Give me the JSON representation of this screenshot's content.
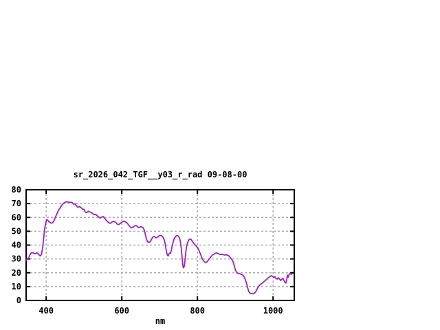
{
  "window": {
    "background": "#ffffff"
  },
  "chart_data": {
    "type": "line",
    "title": "sr_2026_042_TGF__y03_r_rad 09-08-00",
    "xlabel": "nm",
    "ylabel": "",
    "xlim": [
      347,
      1056
    ],
    "ylim": [
      0,
      80
    ],
    "xticks": [
      400,
      600,
      800,
      1000
    ],
    "yticks": [
      0,
      10,
      20,
      30,
      40,
      50,
      60,
      70,
      80
    ],
    "grid": true,
    "legend_position": "none",
    "axis_color": "#000000",
    "grid_color": "#aaaaaa",
    "line_color": "#a020c0",
    "series": [
      {
        "name": "sr_2026_042_TGF__y03_r_rad",
        "points": [
          [
            347,
            29.3
          ],
          [
            350,
            29.5
          ],
          [
            352,
            29.8
          ],
          [
            354,
            31.0
          ],
          [
            357,
            33.0
          ],
          [
            360,
            34.2
          ],
          [
            363,
            34.6
          ],
          [
            366,
            34.4
          ],
          [
            369,
            33.8
          ],
          [
            372,
            33.9
          ],
          [
            375,
            34.4
          ],
          [
            378,
            34.0
          ],
          [
            381,
            33.0
          ],
          [
            384,
            32.2
          ],
          [
            386,
            32.6
          ],
          [
            388,
            34.0
          ],
          [
            390,
            37.0
          ],
          [
            392,
            41.5
          ],
          [
            394,
            47.0
          ],
          [
            396,
            52.0
          ],
          [
            398,
            55.0
          ],
          [
            400,
            57.3
          ],
          [
            402,
            58.3
          ],
          [
            404,
            58.0
          ],
          [
            407,
            57.0
          ],
          [
            410,
            56.4
          ],
          [
            413,
            55.9
          ],
          [
            416,
            56.0
          ],
          [
            419,
            56.8
          ],
          [
            422,
            58.5
          ],
          [
            425,
            60.5
          ],
          [
            428,
            62.4
          ],
          [
            431,
            64.2
          ],
          [
            434,
            65.8
          ],
          [
            437,
            67.0
          ],
          [
            440,
            68.2
          ],
          [
            443,
            69.3
          ],
          [
            446,
            70.2
          ],
          [
            449,
            70.8
          ],
          [
            452,
            71.2
          ],
          [
            455,
            71.3
          ],
          [
            458,
            71.1
          ],
          [
            461,
            70.9
          ],
          [
            464,
            70.8
          ],
          [
            467,
            71.0
          ],
          [
            470,
            70.4
          ],
          [
            473,
            69.5
          ],
          [
            476,
            69.8
          ],
          [
            479,
            68.9
          ],
          [
            482,
            67.7
          ],
          [
            485,
            67.4
          ],
          [
            488,
            67.9
          ],
          [
            491,
            67.3
          ],
          [
            494,
            66.6
          ],
          [
            497,
            65.8
          ],
          [
            500,
            65.9
          ],
          [
            503,
            64.0
          ],
          [
            506,
            63.5
          ],
          [
            509,
            63.9
          ],
          [
            512,
            64.4
          ],
          [
            515,
            64.0
          ],
          [
            518,
            63.7
          ],
          [
            521,
            63.2
          ],
          [
            524,
            62.5
          ],
          [
            527,
            62.0
          ],
          [
            530,
            62.2
          ],
          [
            533,
            61.7
          ],
          [
            536,
            61.0
          ],
          [
            539,
            60.3
          ],
          [
            542,
            59.6
          ],
          [
            545,
            59.9
          ],
          [
            548,
            60.4
          ],
          [
            551,
            60.6
          ],
          [
            554,
            59.6
          ],
          [
            557,
            58.6
          ],
          [
            560,
            57.6
          ],
          [
            563,
            56.8
          ],
          [
            566,
            56.1
          ],
          [
            569,
            55.7
          ],
          [
            572,
            56.2
          ],
          [
            575,
            56.8
          ],
          [
            578,
            57.2
          ],
          [
            581,
            56.9
          ],
          [
            584,
            56.4
          ],
          [
            587,
            55.4
          ],
          [
            590,
            54.8
          ],
          [
            593,
            55.1
          ],
          [
            596,
            55.7
          ],
          [
            599,
            56.3
          ],
          [
            602,
            56.9
          ],
          [
            605,
            57.2
          ],
          [
            608,
            57.0
          ],
          [
            611,
            56.6
          ],
          [
            614,
            55.9
          ],
          [
            617,
            54.9
          ],
          [
            620,
            53.8
          ],
          [
            623,
            53.0
          ],
          [
            626,
            52.5
          ],
          [
            629,
            52.8
          ],
          [
            632,
            53.5
          ],
          [
            635,
            54.0
          ],
          [
            638,
            54.1
          ],
          [
            641,
            53.4
          ],
          [
            644,
            52.7
          ],
          [
            647,
            52.9
          ],
          [
            650,
            53.2
          ],
          [
            653,
            53.1
          ],
          [
            656,
            52.6
          ],
          [
            659,
            51.2
          ],
          [
            662,
            48.0
          ],
          [
            665,
            44.5
          ],
          [
            668,
            42.6
          ],
          [
            671,
            41.9
          ],
          [
            674,
            42.2
          ],
          [
            677,
            43.4
          ],
          [
            680,
            44.9
          ],
          [
            683,
            46.0
          ],
          [
            686,
            46.3
          ],
          [
            689,
            45.4
          ],
          [
            692,
            45.3
          ],
          [
            695,
            45.9
          ],
          [
            698,
            46.5
          ],
          [
            701,
            47.0
          ],
          [
            704,
            46.9
          ],
          [
            707,
            46.3
          ],
          [
            710,
            45.3
          ],
          [
            713,
            43.2
          ],
          [
            715,
            40.5
          ],
          [
            717,
            37.0
          ],
          [
            719,
            34.3
          ],
          [
            721,
            32.5
          ],
          [
            723,
            32.2
          ],
          [
            725,
            33.8
          ],
          [
            727,
            34.2
          ],
          [
            729,
            34.0
          ],
          [
            731,
            36.3
          ],
          [
            733,
            39.0
          ],
          [
            736,
            42.5
          ],
          [
            739,
            44.8
          ],
          [
            742,
            46.2
          ],
          [
            745,
            46.9
          ],
          [
            748,
            46.8
          ],
          [
            751,
            46.0
          ],
          [
            753,
            44.8
          ],
          [
            755,
            42.5
          ],
          [
            757,
            38.5
          ],
          [
            759,
            32.5
          ],
          [
            761,
            26.0
          ],
          [
            763,
            23.5
          ],
          [
            765,
            24.5
          ],
          [
            767,
            28.5
          ],
          [
            769,
            34.0
          ],
          [
            771,
            38.5
          ],
          [
            774,
            41.8
          ],
          [
            777,
            43.6
          ],
          [
            780,
            44.4
          ],
          [
            783,
            44.1
          ],
          [
            786,
            43.0
          ],
          [
            789,
            41.8
          ],
          [
            792,
            40.6
          ],
          [
            795,
            39.7
          ],
          [
            798,
            38.9
          ],
          [
            801,
            38.0
          ],
          [
            804,
            36.2
          ],
          [
            807,
            34.2
          ],
          [
            810,
            32.0
          ],
          [
            813,
            30.0
          ],
          [
            816,
            28.6
          ],
          [
            819,
            27.8
          ],
          [
            822,
            27.5
          ],
          [
            825,
            27.8
          ],
          [
            828,
            28.8
          ],
          [
            831,
            29.9
          ],
          [
            834,
            31.0
          ],
          [
            837,
            32.0
          ],
          [
            840,
            32.8
          ],
          [
            843,
            33.4
          ],
          [
            846,
            33.9
          ],
          [
            849,
            34.3
          ],
          [
            852,
            34.2
          ],
          [
            855,
            33.9
          ],
          [
            858,
            33.5
          ],
          [
            861,
            33.2
          ],
          [
            864,
            33.3
          ],
          [
            867,
            33.2
          ],
          [
            870,
            33.0
          ],
          [
            873,
            32.8
          ],
          [
            876,
            33.0
          ],
          [
            879,
            32.8
          ],
          [
            882,
            32.4
          ],
          [
            885,
            31.6
          ],
          [
            888,
            30.6
          ],
          [
            891,
            29.6
          ],
          [
            894,
            28.2
          ],
          [
            897,
            25.5
          ],
          [
            900,
            22.5
          ],
          [
            903,
            20.5
          ],
          [
            906,
            19.6
          ],
          [
            909,
            19.4
          ],
          [
            912,
            19.3
          ],
          [
            915,
            19.0
          ],
          [
            918,
            18.7
          ],
          [
            921,
            18.1
          ],
          [
            924,
            16.8
          ],
          [
            927,
            14.8
          ],
          [
            930,
            12.2
          ],
          [
            933,
            9.0
          ],
          [
            936,
            6.3
          ],
          [
            939,
            5.3
          ],
          [
            942,
            4.9
          ],
          [
            945,
            5.1
          ],
          [
            948,
            4.8
          ],
          [
            951,
            5.3
          ],
          [
            954,
            6.2
          ],
          [
            957,
            7.8
          ],
          [
            960,
            9.4
          ],
          [
            963,
            10.6
          ],
          [
            966,
            11.5
          ],
          [
            969,
            12.1
          ],
          [
            972,
            12.6
          ],
          [
            975,
            13.3
          ],
          [
            978,
            14.0
          ],
          [
            981,
            14.8
          ],
          [
            984,
            15.5
          ],
          [
            987,
            16.2
          ],
          [
            990,
            16.9
          ],
          [
            993,
            17.5
          ],
          [
            996,
            17.9
          ],
          [
            999,
            17.4
          ],
          [
            1002,
            16.6
          ],
          [
            1005,
            17.2
          ],
          [
            1008,
            15.8
          ],
          [
            1011,
            15.4
          ],
          [
            1014,
            16.4
          ],
          [
            1017,
            15.6
          ],
          [
            1020,
            14.4
          ],
          [
            1023,
            15.3
          ],
          [
            1026,
            16.0
          ],
          [
            1029,
            14.4
          ],
          [
            1032,
            12.9
          ],
          [
            1034,
            12.5
          ],
          [
            1036,
            14.8
          ],
          [
            1038,
            18.3
          ],
          [
            1040,
            16.8
          ],
          [
            1042,
            18.6
          ],
          [
            1045,
            19.7
          ],
          [
            1048,
            18.8
          ],
          [
            1050,
            19.2
          ]
        ]
      }
    ]
  }
}
